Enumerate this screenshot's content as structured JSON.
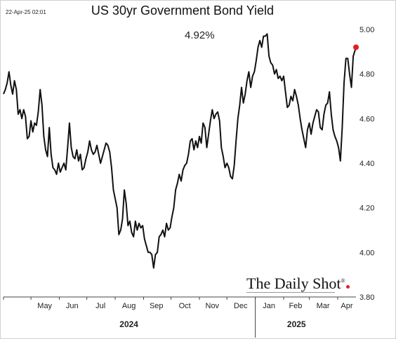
{
  "timestamp": "22-Apr-25 02:01",
  "last_value_label": "4.92%",
  "brand": {
    "name": "The Daily Shot",
    "mark": "®"
  },
  "chart_data": {
    "type": "line",
    "title": "US 30yr Government Bond Yield",
    "xlabel": "",
    "ylabel": "",
    "ylim": [
      3.8,
      5.0
    ],
    "y_ticks": [
      3.8,
      4.0,
      4.2,
      4.4,
      4.6,
      4.8,
      5.0
    ],
    "y_tick_labels": [
      "3.80",
      "4.00",
      "4.20",
      "4.40",
      "4.60",
      "4.80",
      "5.00"
    ],
    "x_range": [
      "2024-04-01",
      "2025-04-21"
    ],
    "month_labels": [
      {
        "label": "May",
        "date": "2024-05-16"
      },
      {
        "label": "Jun",
        "date": "2024-06-15"
      },
      {
        "label": "Jul",
        "date": "2024-07-16"
      },
      {
        "label": "Aug",
        "date": "2024-08-16"
      },
      {
        "label": "Sep",
        "date": "2024-09-15"
      },
      {
        "label": "Oct",
        "date": "2024-10-16"
      },
      {
        "label": "Nov",
        "date": "2024-11-15"
      },
      {
        "label": "Dec",
        "date": "2024-12-16"
      },
      {
        "label": "Jan",
        "date": "2025-01-16"
      },
      {
        "label": "Feb",
        "date": "2025-02-14"
      },
      {
        "label": "Mar",
        "date": "2025-03-16"
      },
      {
        "label": "Apr",
        "date": "2025-04-11"
      }
    ],
    "year_labels": [
      {
        "label": "2024",
        "date": "2024-08-16"
      },
      {
        "label": "2025",
        "date": "2025-02-15"
      }
    ],
    "year_divider": "2025-01-01",
    "show_grid": false,
    "line_color": "#111111",
    "marker_color": "#e02020",
    "series": [
      {
        "points": [
          [
            "2024-04-01",
            4.71
          ],
          [
            "2024-04-03",
            4.73
          ],
          [
            "2024-04-05",
            4.76
          ],
          [
            "2024-04-07",
            4.81
          ],
          [
            "2024-04-09",
            4.75
          ],
          [
            "2024-04-11",
            4.71
          ],
          [
            "2024-04-13",
            4.77
          ],
          [
            "2024-04-15",
            4.73
          ],
          [
            "2024-04-17",
            4.62
          ],
          [
            "2024-04-19",
            4.64
          ],
          [
            "2024-04-21",
            4.6
          ],
          [
            "2024-04-23",
            4.64
          ],
          [
            "2024-04-25",
            4.61
          ],
          [
            "2024-04-27",
            4.51
          ],
          [
            "2024-04-29",
            4.52
          ],
          [
            "2024-05-01",
            4.59
          ],
          [
            "2024-05-03",
            4.54
          ],
          [
            "2024-05-05",
            4.58
          ],
          [
            "2024-05-07",
            4.57
          ],
          [
            "2024-05-09",
            4.63
          ],
          [
            "2024-05-11",
            4.73
          ],
          [
            "2024-05-13",
            4.66
          ],
          [
            "2024-05-15",
            4.52
          ],
          [
            "2024-05-17",
            4.46
          ],
          [
            "2024-05-19",
            4.43
          ],
          [
            "2024-05-21",
            4.56
          ],
          [
            "2024-05-23",
            4.44
          ],
          [
            "2024-05-25",
            4.38
          ],
          [
            "2024-05-27",
            4.37
          ],
          [
            "2024-05-29",
            4.35
          ],
          [
            "2024-05-31",
            4.4
          ],
          [
            "2024-06-02",
            4.36
          ],
          [
            "2024-06-04",
            4.38
          ],
          [
            "2024-06-06",
            4.4
          ],
          [
            "2024-06-08",
            4.37
          ],
          [
            "2024-06-10",
            4.47
          ],
          [
            "2024-06-12",
            4.58
          ],
          [
            "2024-06-14",
            4.47
          ],
          [
            "2024-06-16",
            4.43
          ],
          [
            "2024-06-18",
            4.42
          ],
          [
            "2024-06-20",
            4.46
          ],
          [
            "2024-06-22",
            4.41
          ],
          [
            "2024-06-24",
            4.44
          ],
          [
            "2024-06-26",
            4.37
          ],
          [
            "2024-06-28",
            4.38
          ],
          [
            "2024-06-30",
            4.42
          ],
          [
            "2024-07-02",
            4.45
          ],
          [
            "2024-07-04",
            4.5
          ],
          [
            "2024-07-06",
            4.46
          ],
          [
            "2024-07-08",
            4.44
          ],
          [
            "2024-07-10",
            4.45
          ],
          [
            "2024-07-12",
            4.48
          ],
          [
            "2024-07-14",
            4.44
          ],
          [
            "2024-07-16",
            4.4
          ],
          [
            "2024-07-18",
            4.43
          ],
          [
            "2024-07-20",
            4.46
          ],
          [
            "2024-07-22",
            4.49
          ],
          [
            "2024-07-24",
            4.48
          ],
          [
            "2024-07-26",
            4.45
          ],
          [
            "2024-07-28",
            4.38
          ],
          [
            "2024-07-30",
            4.28
          ],
          [
            "2024-08-01",
            4.24
          ],
          [
            "2024-08-03",
            4.2
          ],
          [
            "2024-08-05",
            4.08
          ],
          [
            "2024-08-07",
            4.1
          ],
          [
            "2024-08-09",
            4.15
          ],
          [
            "2024-08-11",
            4.28
          ],
          [
            "2024-08-13",
            4.22
          ],
          [
            "2024-08-15",
            4.12
          ],
          [
            "2024-08-17",
            4.14
          ],
          [
            "2024-08-19",
            4.09
          ],
          [
            "2024-08-21",
            4.07
          ],
          [
            "2024-08-23",
            4.14
          ],
          [
            "2024-08-25",
            4.1
          ],
          [
            "2024-08-27",
            4.13
          ],
          [
            "2024-08-29",
            4.11
          ],
          [
            "2024-08-31",
            4.12
          ],
          [
            "2024-09-02",
            4.06
          ],
          [
            "2024-09-04",
            4.03
          ],
          [
            "2024-09-06",
            4.0
          ],
          [
            "2024-09-08",
            4.0
          ],
          [
            "2024-09-10",
            3.99
          ],
          [
            "2024-09-12",
            3.93
          ],
          [
            "2024-09-14",
            3.99
          ],
          [
            "2024-09-16",
            4.0
          ],
          [
            "2024-09-18",
            4.07
          ],
          [
            "2024-09-20",
            4.08
          ],
          [
            "2024-09-22",
            4.1
          ],
          [
            "2024-09-24",
            4.07
          ],
          [
            "2024-09-26",
            4.13
          ],
          [
            "2024-09-28",
            4.1
          ],
          [
            "2024-09-30",
            4.11
          ],
          [
            "2024-10-02",
            4.16
          ],
          [
            "2024-10-04",
            4.2
          ],
          [
            "2024-10-06",
            4.28
          ],
          [
            "2024-10-08",
            4.31
          ],
          [
            "2024-10-10",
            4.35
          ],
          [
            "2024-10-12",
            4.32
          ],
          [
            "2024-10-14",
            4.37
          ],
          [
            "2024-10-16",
            4.39
          ],
          [
            "2024-10-18",
            4.4
          ],
          [
            "2024-10-20",
            4.44
          ],
          [
            "2024-10-22",
            4.5
          ],
          [
            "2024-10-24",
            4.51
          ],
          [
            "2024-10-26",
            4.46
          ],
          [
            "2024-10-28",
            4.5
          ],
          [
            "2024-10-30",
            4.47
          ],
          [
            "2024-11-01",
            4.52
          ],
          [
            "2024-11-03",
            4.49
          ],
          [
            "2024-11-05",
            4.58
          ],
          [
            "2024-11-07",
            4.56
          ],
          [
            "2024-11-09",
            4.47
          ],
          [
            "2024-11-11",
            4.53
          ],
          [
            "2024-11-13",
            4.59
          ],
          [
            "2024-11-15",
            4.64
          ],
          [
            "2024-11-17",
            4.6
          ],
          [
            "2024-11-19",
            4.62
          ],
          [
            "2024-11-21",
            4.63
          ],
          [
            "2024-11-23",
            4.59
          ],
          [
            "2024-11-25",
            4.47
          ],
          [
            "2024-11-27",
            4.43
          ],
          [
            "2024-11-29",
            4.38
          ],
          [
            "2024-12-01",
            4.4
          ],
          [
            "2024-12-03",
            4.38
          ],
          [
            "2024-12-05",
            4.34
          ],
          [
            "2024-12-07",
            4.33
          ],
          [
            "2024-12-09",
            4.39
          ],
          [
            "2024-12-11",
            4.5
          ],
          [
            "2024-12-13",
            4.6
          ],
          [
            "2024-12-15",
            4.66
          ],
          [
            "2024-12-17",
            4.74
          ],
          [
            "2024-12-19",
            4.67
          ],
          [
            "2024-12-21",
            4.71
          ],
          [
            "2024-12-23",
            4.77
          ],
          [
            "2024-12-25",
            4.81
          ],
          [
            "2024-12-27",
            4.74
          ],
          [
            "2024-12-29",
            4.79
          ],
          [
            "2024-12-31",
            4.81
          ],
          [
            "2025-01-02",
            4.86
          ],
          [
            "2025-01-04",
            4.92
          ],
          [
            "2025-01-06",
            4.95
          ],
          [
            "2025-01-08",
            4.92
          ],
          [
            "2025-01-10",
            4.97
          ],
          [
            "2025-01-12",
            4.97
          ],
          [
            "2025-01-14",
            4.98
          ],
          [
            "2025-01-16",
            4.88
          ],
          [
            "2025-01-18",
            4.85
          ],
          [
            "2025-01-20",
            4.84
          ],
          [
            "2025-01-22",
            4.8
          ],
          [
            "2025-01-24",
            4.82
          ],
          [
            "2025-01-26",
            4.78
          ],
          [
            "2025-01-28",
            4.79
          ],
          [
            "2025-01-30",
            4.77
          ],
          [
            "2025-02-01",
            4.79
          ],
          [
            "2025-02-03",
            4.72
          ],
          [
            "2025-02-05",
            4.65
          ],
          [
            "2025-02-07",
            4.66
          ],
          [
            "2025-02-09",
            4.7
          ],
          [
            "2025-02-11",
            4.68
          ],
          [
            "2025-02-13",
            4.73
          ],
          [
            "2025-02-15",
            4.7
          ],
          [
            "2025-02-17",
            4.66
          ],
          [
            "2025-02-19",
            4.6
          ],
          [
            "2025-02-21",
            4.55
          ],
          [
            "2025-02-23",
            4.51
          ],
          [
            "2025-02-25",
            4.47
          ],
          [
            "2025-02-27",
            4.55
          ],
          [
            "2025-03-01",
            4.58
          ],
          [
            "2025-03-03",
            4.53
          ],
          [
            "2025-03-05",
            4.58
          ],
          [
            "2025-03-07",
            4.61
          ],
          [
            "2025-03-09",
            4.64
          ],
          [
            "2025-03-11",
            4.63
          ],
          [
            "2025-03-13",
            4.56
          ],
          [
            "2025-03-15",
            4.55
          ],
          [
            "2025-03-17",
            4.62
          ],
          [
            "2025-03-19",
            4.66
          ],
          [
            "2025-03-21",
            4.67
          ],
          [
            "2025-03-23",
            4.72
          ],
          [
            "2025-03-25",
            4.62
          ],
          [
            "2025-03-27",
            4.55
          ],
          [
            "2025-03-29",
            4.52
          ],
          [
            "2025-03-31",
            4.5
          ],
          [
            "2025-04-02",
            4.47
          ],
          [
            "2025-04-04",
            4.41
          ],
          [
            "2025-04-06",
            4.56
          ],
          [
            "2025-04-08",
            4.76
          ],
          [
            "2025-04-10",
            4.87
          ],
          [
            "2025-04-12",
            4.87
          ],
          [
            "2025-04-14",
            4.8
          ],
          [
            "2025-04-16",
            4.74
          ],
          [
            "2025-04-18",
            4.88
          ],
          [
            "2025-04-21",
            4.92
          ]
        ]
      }
    ]
  }
}
